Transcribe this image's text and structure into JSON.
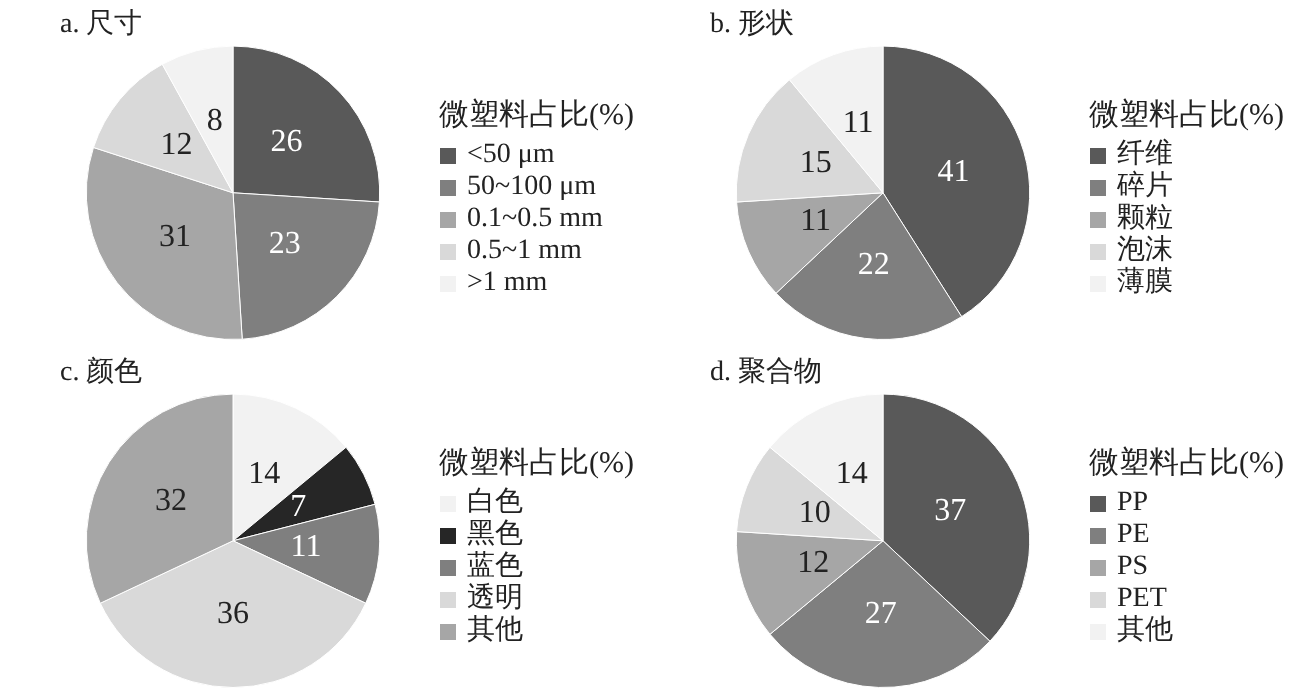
{
  "chart_data": [
    {
      "type": "pie",
      "title": "a. 尺寸",
      "legend_title": "微塑料占比(%)",
      "legend": "right",
      "data_labels": true,
      "categories": [
        "<50 μm",
        "50~100 μm",
        "0.1~0.5 mm",
        "0.5~1 mm",
        ">1 mm"
      ],
      "values": [
        26,
        23,
        31,
        12,
        8
      ],
      "colors": [
        "#595959",
        "#7f7f7f",
        "#a6a6a6",
        "#d9d9d9",
        "#f2f2f2"
      ]
    },
    {
      "type": "pie",
      "title": "b. 形状",
      "legend_title": "微塑料占比(%)",
      "legend": "right",
      "data_labels": true,
      "categories": [
        "纤维",
        "碎片",
        "颗粒",
        "泡沫",
        "薄膜"
      ],
      "values": [
        41,
        22,
        11,
        15,
        11
      ],
      "colors": [
        "#595959",
        "#7f7f7f",
        "#a6a6a6",
        "#d9d9d9",
        "#f2f2f2"
      ]
    },
    {
      "type": "pie",
      "title": "c. 颜色",
      "legend_title": "微塑料占比(%)",
      "legend": "right",
      "data_labels": true,
      "categories": [
        "白色",
        "黑色",
        "蓝色",
        "透明",
        "其他"
      ],
      "values": [
        14,
        7,
        11,
        36,
        32
      ],
      "colors": [
        "#f2f2f2",
        "#262626",
        "#7f7f7f",
        "#d9d9d9",
        "#a6a6a6"
      ]
    },
    {
      "type": "pie",
      "title": "d. 聚合物",
      "legend_title": "微塑料占比(%)",
      "legend": "right",
      "data_labels": true,
      "categories": [
        "PP",
        "PE",
        "PS",
        "PET",
        "其他"
      ],
      "values": [
        37,
        27,
        12,
        10,
        14
      ],
      "colors": [
        "#595959",
        "#7f7f7f",
        "#a6a6a6",
        "#d9d9d9",
        "#f2f2f2"
      ]
    }
  ]
}
